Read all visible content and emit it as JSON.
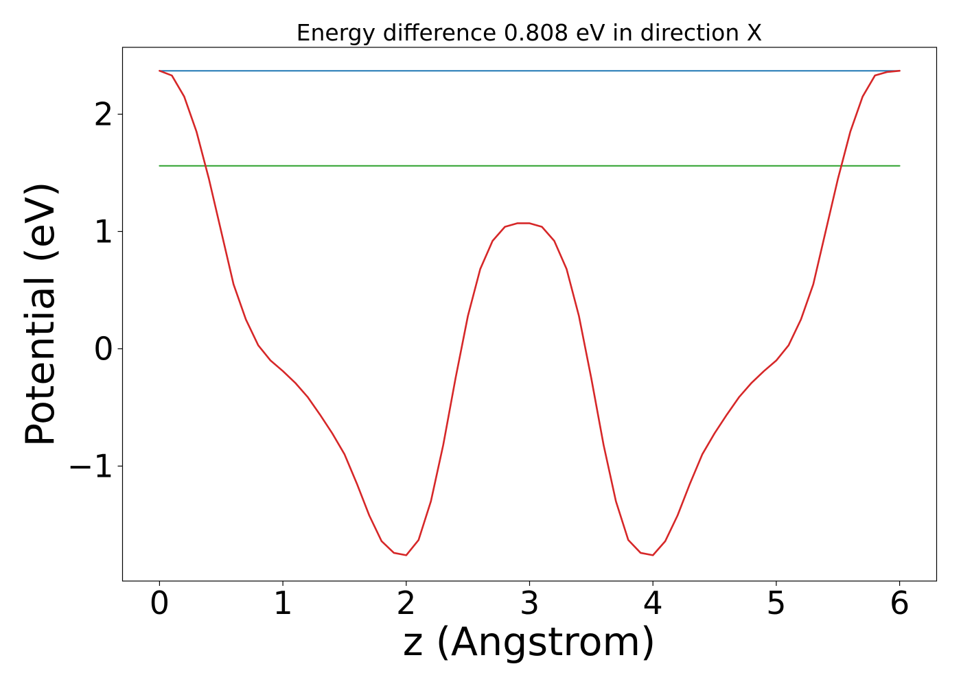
{
  "chart_data": {
    "type": "line",
    "title": "Energy difference 0.808 eV in direction X",
    "xlabel": "z (Angstrom)",
    "ylabel": "Potential (eV)",
    "xlim": [
      -0.3,
      6.3
    ],
    "ylim": [
      -1.98,
      2.57
    ],
    "grid": false,
    "legend": "none",
    "xticks": [
      0,
      1,
      2,
      3,
      4,
      5,
      6
    ],
    "xtick_labels": [
      "0",
      "1",
      "2",
      "3",
      "4",
      "5",
      "6"
    ],
    "yticks": [
      -1,
      0,
      1,
      2
    ],
    "ytick_labels": [
      "−1",
      "0",
      "1",
      "2"
    ],
    "series": [
      {
        "color": "#1f77b4",
        "x": [
          0,
          6
        ],
        "y": [
          2.37,
          2.37
        ]
      },
      {
        "color": "#2ca02c",
        "x": [
          0,
          6
        ],
        "y": [
          1.56,
          1.56
        ]
      },
      {
        "color": "#d62728",
        "x": [
          0,
          0.1,
          0.2,
          0.3,
          0.4,
          0.5,
          0.6,
          0.7,
          0.8,
          0.9,
          1.0,
          1.1,
          1.2,
          1.3,
          1.4,
          1.5,
          1.6,
          1.7,
          1.8,
          1.9,
          2.0,
          2.1,
          2.2,
          2.3,
          2.4,
          2.5,
          2.6,
          2.7,
          2.8,
          2.9,
          3.0,
          3.1,
          3.2,
          3.3,
          3.4,
          3.5,
          3.6,
          3.7,
          3.8,
          3.9,
          4.0,
          4.1,
          4.2,
          4.3,
          4.4,
          4.5,
          4.6,
          4.7,
          4.8,
          4.9,
          5.0,
          5.1,
          5.2,
          5.3,
          5.4,
          5.5,
          5.6,
          5.7,
          5.8,
          5.9,
          6.0
        ],
        "y": [
          2.37,
          2.33,
          2.15,
          1.85,
          1.45,
          1.0,
          0.55,
          0.25,
          0.03,
          -0.1,
          -0.19,
          -0.29,
          -0.41,
          -0.56,
          -0.72,
          -0.9,
          -1.15,
          -1.42,
          -1.64,
          -1.74,
          -1.76,
          -1.63,
          -1.3,
          -0.82,
          -0.25,
          0.28,
          0.68,
          0.92,
          1.04,
          1.07,
          1.07,
          1.04,
          0.92,
          0.68,
          0.28,
          -0.25,
          -0.82,
          -1.3,
          -1.63,
          -1.74,
          -1.76,
          -1.64,
          -1.42,
          -1.15,
          -0.9,
          -0.72,
          -0.56,
          -0.41,
          -0.29,
          -0.19,
          -0.1,
          0.03,
          0.25,
          0.55,
          1.0,
          1.45,
          1.85,
          2.15,
          2.33,
          2.36,
          2.37
        ]
      }
    ]
  }
}
